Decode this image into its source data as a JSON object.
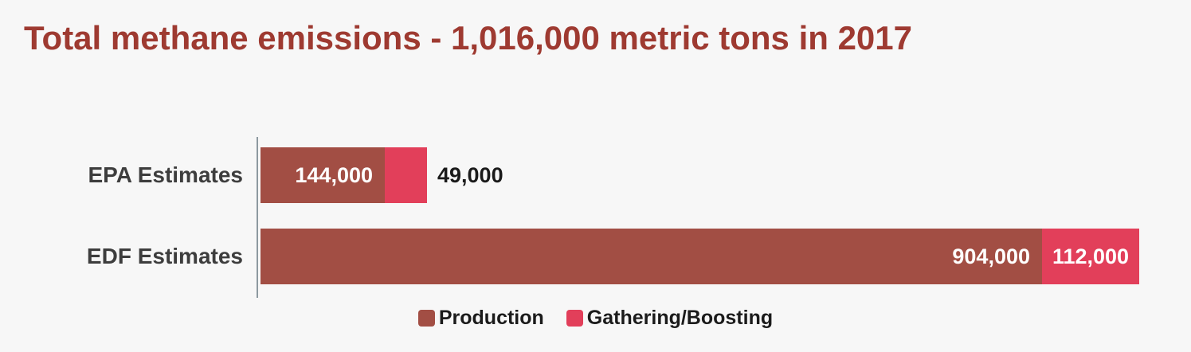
{
  "canvas": {
    "background": "#f7f7f7"
  },
  "title": {
    "text": "Total methane emissions - 1,016,000 metric tons in 2017",
    "color": "#9e3a31"
  },
  "axis": {
    "line_color": "#8d99a0"
  },
  "text_colors": {
    "category_label": "#3d3d3d",
    "value_inside": "#ffffff",
    "value_outside": "#1a1a1a",
    "legend_label": "#1b1b1b"
  },
  "legend": {
    "items": [
      {
        "label": "Production",
        "color": "#a24e44"
      },
      {
        "label": "Gathering/Boosting",
        "color": "#e23f5a"
      }
    ]
  },
  "chart_data": {
    "type": "bar",
    "orientation": "horizontal",
    "stacked": true,
    "title": "Total methane emissions - 1,016,000 metric tons in 2017",
    "categories": [
      "EPA Estimates",
      "EDF Estimates"
    ],
    "series": [
      {
        "name": "Production",
        "color": "#a24e44",
        "values": [
          144000,
          904000
        ]
      },
      {
        "name": "Gathering/Boosting",
        "color": "#e23f5a",
        "values": [
          49000,
          112000
        ]
      }
    ],
    "category_totals": [
      193000,
      1016000
    ],
    "value_labels": [
      [
        "144,000",
        "49,000"
      ],
      [
        "904,000",
        "112,000"
      ]
    ],
    "xlabel": "",
    "ylabel": "",
    "xlim": [
      0,
      1016000
    ],
    "grid": false,
    "axis_ticks": "none",
    "legend_position": "bottom"
  }
}
